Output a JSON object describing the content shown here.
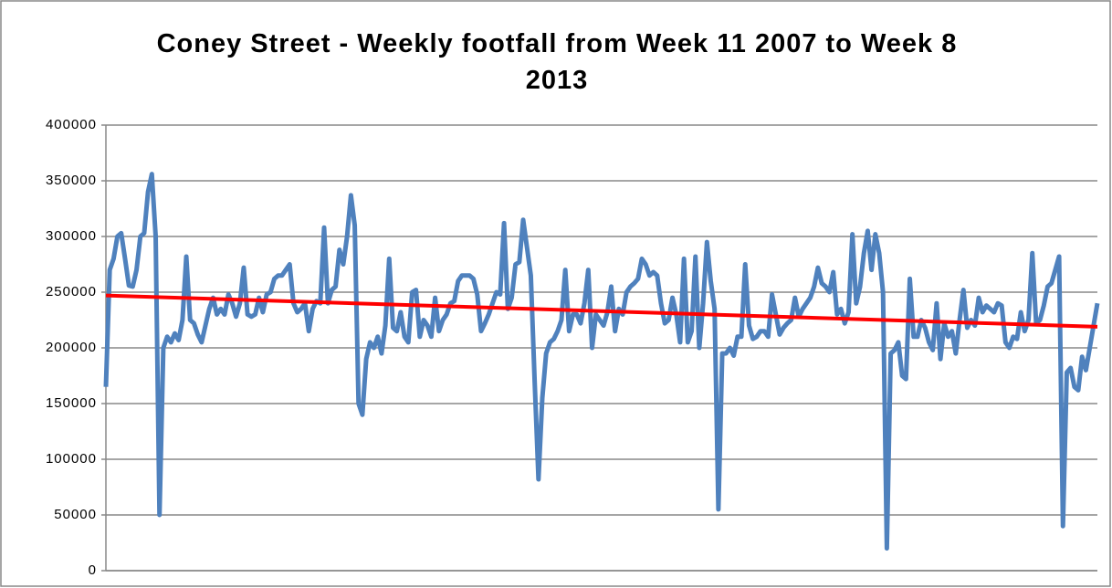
{
  "chart_data": {
    "type": "line",
    "title": "Coney Street - Weekly footfall from Week 11 2007 to Week 8 2013",
    "ylim": [
      0,
      400000
    ],
    "yticks": [
      0,
      50000,
      100000,
      150000,
      200000,
      250000,
      300000,
      350000,
      400000
    ],
    "grid": true,
    "color": "#4f81bd",
    "values": [
      165000,
      270000,
      280000,
      300000,
      303000,
      280000,
      256000,
      255000,
      270000,
      300000,
      303000,
      340000,
      356000,
      300000,
      50000,
      200000,
      210000,
      205000,
      213000,
      207000,
      225000,
      282000,
      225000,
      222000,
      212000,
      205000,
      220000,
      235000,
      245000,
      230000,
      235000,
      230000,
      248000,
      240000,
      228000,
      240000,
      272000,
      230000,
      228000,
      230000,
      245000,
      232000,
      248000,
      250000,
      262000,
      265000,
      265000,
      270000,
      275000,
      240000,
      232000,
      235000,
      240000,
      215000,
      235000,
      242000,
      240000,
      308000,
      240000,
      252000,
      255000,
      288000,
      275000,
      300000,
      337000,
      310000,
      150000,
      140000,
      190000,
      205000,
      200000,
      210000,
      195000,
      220000,
      280000,
      218000,
      215000,
      232000,
      210000,
      205000,
      250000,
      252000,
      210000,
      225000,
      220000,
      210000,
      245000,
      215000,
      225000,
      230000,
      240000,
      242000,
      260000,
      265000,
      265000,
      265000,
      262000,
      248000,
      215000,
      222000,
      230000,
      240000,
      250000,
      248000,
      312000,
      235000,
      245000,
      275000,
      277000,
      315000,
      290000,
      265000,
      170000,
      82000,
      155000,
      195000,
      205000,
      208000,
      215000,
      225000,
      270000,
      215000,
      230000,
      230000,
      222000,
      240000,
      270000,
      200000,
      230000,
      225000,
      220000,
      232000,
      255000,
      215000,
      235000,
      230000,
      250000,
      255000,
      258000,
      262000,
      280000,
      275000,
      265000,
      268000,
      265000,
      240000,
      222000,
      225000,
      245000,
      230000,
      205000,
      280000,
      205000,
      215000,
      282000,
      200000,
      240000,
      295000,
      260000,
      235000,
      55000,
      195000,
      195000,
      200000,
      193000,
      210000,
      210000,
      275000,
      220000,
      208000,
      210000,
      215000,
      215000,
      210000,
      248000,
      230000,
      212000,
      218000,
      222000,
      225000,
      245000,
      228000,
      235000,
      240000,
      245000,
      255000,
      272000,
      258000,
      255000,
      250000,
      268000,
      230000,
      235000,
      222000,
      232000,
      302000,
      240000,
      255000,
      285000,
      305000,
      270000,
      302000,
      285000,
      250000,
      20000,
      195000,
      198000,
      205000,
      175000,
      172000,
      262000,
      210000,
      210000,
      225000,
      218000,
      205000,
      198000,
      240000,
      190000,
      222000,
      210000,
      215000,
      195000,
      225000,
      252000,
      218000,
      225000,
      220000,
      245000,
      232000,
      238000,
      235000,
      232000,
      240000,
      238000,
      205000,
      200000,
      210000,
      208000,
      232000,
      215000,
      225000,
      285000,
      222000,
      225000,
      238000,
      255000,
      258000,
      270000,
      282000,
      40000,
      178000,
      182000,
      165000,
      162000,
      192000,
      180000,
      200000,
      220000,
      240000
    ],
    "trendline": {
      "color": "#ff0000",
      "values": [
        247000,
        219000
      ]
    }
  }
}
